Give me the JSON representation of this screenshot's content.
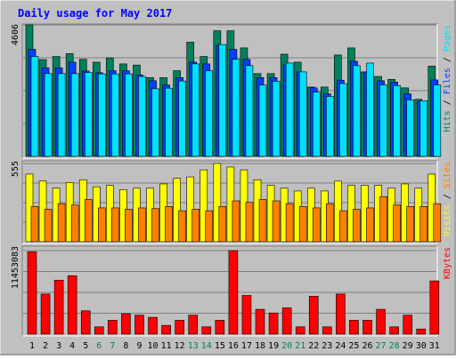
{
  "title": "Daily usage for May 2017",
  "colors": {
    "background": "#c0c0c0",
    "title": "#0000ff",
    "hits": "#00805c",
    "files": "#0040ff",
    "pages": "#00e0ff",
    "visits": "#ffff00",
    "sites": "#ff8000",
    "kbytes": "#ff0000",
    "weekend_day": "#00805c",
    "weekday": "#000000"
  },
  "chart_data": [
    {
      "type": "bar",
      "title": "Daily usage for May 2017",
      "max_label": "4606",
      "legend": [
        "Pages",
        "Files",
        "Hits"
      ],
      "legend_colors": [
        "#00e0ff",
        "#0040ff",
        "#00805c"
      ],
      "ylim": [
        0,
        4606
      ],
      "categories": [
        "1",
        "2",
        "3",
        "4",
        "5",
        "6",
        "7",
        "8",
        "9",
        "10",
        "11",
        "12",
        "13",
        "14",
        "15",
        "16",
        "17",
        "18",
        "19",
        "20",
        "21",
        "22",
        "23",
        "24",
        "25",
        "26",
        "27",
        "28",
        "29",
        "30",
        "31"
      ],
      "series": [
        {
          "name": "Hits",
          "values": [
            4606,
            3390,
            3500,
            3600,
            3400,
            3300,
            3450,
            3240,
            3200,
            2760,
            2760,
            3000,
            4000,
            3500,
            4400,
            4400,
            3800,
            2900,
            2900,
            3580,
            3300,
            2430,
            2430,
            3550,
            3800,
            2960,
            2800,
            2700,
            2400,
            2000,
            3160
          ]
        },
        {
          "name": "Files",
          "values": [
            3750,
            3100,
            3100,
            3300,
            2990,
            2930,
            3000,
            3000,
            2850,
            2650,
            2500,
            2760,
            3300,
            3240,
            3890,
            3750,
            3400,
            2760,
            2760,
            3210,
            2960,
            2400,
            2190,
            2670,
            3330,
            2960,
            2650,
            2600,
            2190,
            1940,
            2680
          ]
        },
        {
          "name": "Pages",
          "values": [
            3500,
            2900,
            2900,
            2900,
            2940,
            2890,
            2890,
            2890,
            2800,
            2370,
            2390,
            2640,
            3240,
            3000,
            3920,
            3400,
            3180,
            2500,
            2630,
            3270,
            2960,
            2250,
            2100,
            2550,
            3180,
            3270,
            2500,
            2480,
            1980,
            1950,
            2500
          ]
        }
      ]
    },
    {
      "type": "bar",
      "max_label": "555",
      "legend": [
        "Sites",
        "Visits"
      ],
      "legend_colors": [
        "#ff8000",
        "#ffff00"
      ],
      "ylim": [
        0,
        555
      ],
      "categories": [
        "1",
        "2",
        "3",
        "4",
        "5",
        "6",
        "7",
        "8",
        "9",
        "10",
        "11",
        "12",
        "13",
        "14",
        "15",
        "16",
        "17",
        "18",
        "19",
        "20",
        "21",
        "22",
        "23",
        "24",
        "25",
        "26",
        "27",
        "28",
        "29",
        "30",
        "31"
      ],
      "series": [
        {
          "name": "Visits",
          "values": [
            480,
            430,
            380,
            420,
            440,
            390,
            400,
            370,
            380,
            380,
            410,
            450,
            460,
            510,
            555,
            530,
            510,
            440,
            400,
            380,
            360,
            380,
            360,
            430,
            400,
            400,
            400,
            380,
            410,
            380,
            480
          ]
        },
        {
          "name": "Sites",
          "values": [
            250,
            230,
            270,
            260,
            300,
            240,
            240,
            230,
            240,
            235,
            250,
            220,
            230,
            220,
            250,
            290,
            280,
            300,
            290,
            270,
            250,
            240,
            270,
            220,
            230,
            240,
            320,
            260,
            250,
            250,
            270
          ]
        }
      ]
    },
    {
      "type": "bar",
      "max_label": "11453083",
      "legend": [
        "KBytes"
      ],
      "legend_colors": [
        "#ff0000"
      ],
      "ylim": [
        0,
        11453083
      ],
      "categories": [
        "1",
        "2",
        "3",
        "4",
        "5",
        "6",
        "7",
        "8",
        "9",
        "10",
        "11",
        "12",
        "13",
        "14",
        "15",
        "16",
        "17",
        "18",
        "19",
        "20",
        "21",
        "22",
        "23",
        "24",
        "25",
        "26",
        "27",
        "28",
        "29",
        "30",
        "31"
      ],
      "series": [
        {
          "name": "KBytes",
          "values": [
            11300000,
            5500000,
            7400000,
            8000000,
            3200000,
            1000000,
            1900000,
            2800000,
            2600000,
            2300000,
            1200000,
            1900000,
            2600000,
            1000000,
            1900000,
            11453083,
            5300000,
            3400000,
            2900000,
            3600000,
            1000000,
            5200000,
            1000000,
            5500000,
            1900000,
            1900000,
            3400000,
            1000000,
            2600000,
            700000,
            7300000
          ]
        }
      ]
    }
  ],
  "x_axis": {
    "day_labels": [
      "1",
      "2",
      "3",
      "4",
      "5",
      "6",
      "7",
      "8",
      "9",
      "10",
      "11",
      "12",
      "13",
      "14",
      "15",
      "16",
      "17",
      "18",
      "19",
      "20",
      "21",
      "22",
      "23",
      "24",
      "25",
      "26",
      "27",
      "28",
      "29",
      "30",
      "31"
    ],
    "weekend_days": [
      "6",
      "7",
      "13",
      "14",
      "20",
      "21",
      "27",
      "28"
    ]
  }
}
